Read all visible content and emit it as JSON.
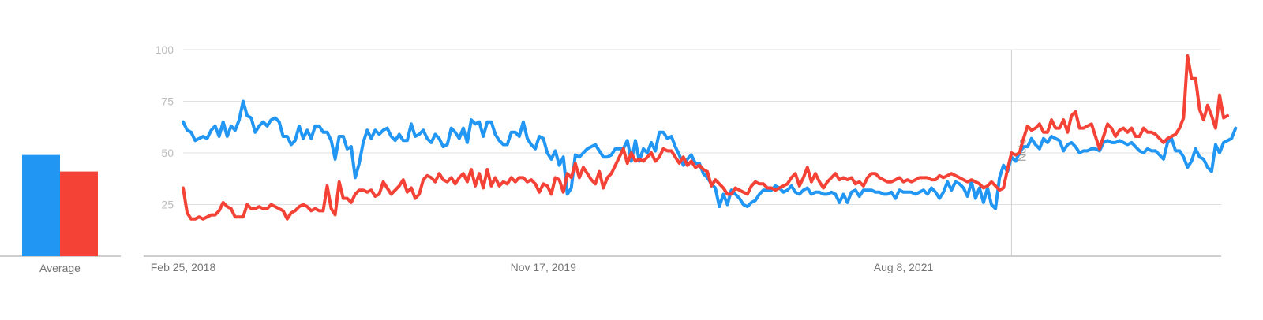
{
  "colors": {
    "series_a": "#2196f3",
    "series_b": "#f44336",
    "grid": "#e0e0e0",
    "axis": "#9e9e9e",
    "text": "#757575"
  },
  "average_panel": {
    "label": "Average",
    "values": [
      49,
      41
    ]
  },
  "chart_data": {
    "type": "line",
    "xlabel": "",
    "ylabel": "",
    "ylim": [
      0,
      100
    ],
    "yticks": [
      25,
      50,
      75,
      100
    ],
    "grid": true,
    "x_tick_labels": [
      "Feb 25, 2018",
      "Nov 17, 2019",
      "Aug 8, 2021"
    ],
    "note_marker": {
      "label": "Note",
      "x_index": 207
    },
    "x_range": {
      "start": "2018-02-25",
      "end": "2023-02-12",
      "step_days": 7,
      "points": 260
    },
    "series": [
      {
        "color": "#2196f3",
        "values": [
          65,
          61,
          60,
          56,
          57,
          58,
          57,
          61,
          63,
          58,
          65,
          58,
          63,
          61,
          66,
          75,
          68,
          67,
          60,
          63,
          65,
          63,
          66,
          67,
          65,
          58,
          58,
          54,
          56,
          63,
          57,
          61,
          57,
          63,
          63,
          60,
          60,
          56,
          47,
          58,
          58,
          52,
          53,
          38,
          45,
          55,
          61,
          57,
          61,
          59,
          61,
          62,
          58,
          56,
          59,
          56,
          56,
          64,
          58,
          59,
          61,
          57,
          55,
          59,
          57,
          53,
          54,
          62,
          60,
          57,
          62,
          55,
          66,
          64,
          65,
          58,
          65,
          65,
          59,
          56,
          54,
          54,
          60,
          60,
          58,
          65,
          57,
          54,
          52,
          58,
          57,
          50,
          47,
          51,
          44,
          48,
          30,
          33,
          49,
          48,
          50,
          52,
          53,
          54,
          51,
          48,
          48,
          49,
          52,
          52,
          52,
          56,
          46,
          56,
          46,
          52,
          50,
          55,
          51,
          60,
          60,
          57,
          58,
          53,
          49,
          44,
          47,
          49,
          45,
          45,
          40,
          38,
          35,
          33,
          24,
          30,
          25,
          32,
          30,
          28,
          25,
          24,
          26,
          27,
          30,
          32,
          32,
          32,
          34,
          33,
          31,
          32,
          34,
          31,
          30,
          32,
          33,
          30,
          31,
          31,
          30,
          30,
          31,
          30,
          26,
          30,
          26,
          31,
          32,
          29,
          32,
          32,
          32,
          31,
          31,
          30,
          30,
          31,
          28,
          32,
          31,
          31,
          31,
          30,
          31,
          32,
          30,
          33,
          31,
          28,
          31,
          36,
          32,
          36,
          35,
          33,
          29,
          36,
          28,
          33,
          26,
          33,
          25,
          23,
          38,
          44,
          41,
          48,
          46,
          50,
          53,
          53,
          57,
          54,
          52,
          57,
          55,
          58,
          57,
          56,
          51,
          54,
          55,
          53,
          50,
          51,
          51,
          52,
          52,
          51,
          55,
          56,
          55,
          55,
          56,
          55,
          54,
          55,
          53,
          51,
          50,
          52,
          51,
          51,
          49,
          47,
          55,
          57,
          51,
          51,
          48,
          43,
          46,
          52,
          48,
          47,
          43,
          41,
          54,
          50,
          55,
          56,
          57,
          62
        ]
      },
      {
        "color": "#f44336",
        "values": [
          33,
          21,
          18,
          18,
          19,
          18,
          19,
          20,
          20,
          22,
          26,
          24,
          23,
          19,
          19,
          19,
          25,
          23,
          23,
          24,
          23,
          23,
          25,
          24,
          23,
          22,
          18,
          21,
          22,
          24,
          25,
          24,
          22,
          23,
          22,
          22,
          34,
          23,
          20,
          36,
          28,
          28,
          26,
          30,
          32,
          32,
          31,
          32,
          29,
          30,
          36,
          33,
          30,
          32,
          34,
          37,
          31,
          33,
          28,
          30,
          37,
          39,
          38,
          36,
          40,
          37,
          36,
          38,
          35,
          38,
          40,
          36,
          42,
          34,
          40,
          33,
          42,
          34,
          38,
          34,
          36,
          35,
          38,
          36,
          38,
          38,
          36,
          37,
          35,
          31,
          35,
          34,
          30,
          38,
          37,
          31,
          40,
          38,
          45,
          38,
          43,
          40,
          37,
          35,
          41,
          33,
          38,
          40,
          44,
          48,
          52,
          45,
          50,
          46,
          47,
          46,
          48,
          50,
          46,
          48,
          52,
          51,
          51,
          48,
          45,
          48,
          44,
          46,
          43,
          44,
          42,
          41,
          34,
          37,
          35,
          33,
          30,
          30,
          33,
          32,
          31,
          30,
          34,
          36,
          35,
          35,
          33,
          33,
          32,
          33,
          34,
          35,
          38,
          40,
          34,
          38,
          43,
          36,
          40,
          36,
          33,
          36,
          38,
          40,
          37,
          38,
          37,
          38,
          35,
          36,
          34,
          38,
          40,
          40,
          38,
          37,
          36,
          36,
          37,
          38,
          36,
          37,
          36,
          37,
          38,
          38,
          38,
          37,
          37,
          39,
          38,
          39,
          40,
          39,
          38,
          37,
          36,
          37,
          36,
          35,
          33,
          34,
          36,
          34,
          32,
          33,
          42,
          50,
          49,
          50,
          57,
          63,
          61,
          62,
          64,
          60,
          60,
          66,
          62,
          62,
          66,
          60,
          68,
          70,
          62,
          62,
          63,
          64,
          58,
          52,
          58,
          64,
          62,
          58,
          61,
          62,
          60,
          62,
          58,
          58,
          62,
          60,
          60,
          59,
          57,
          55,
          57,
          58,
          59,
          62,
          67,
          97,
          86,
          86,
          71,
          66,
          73,
          68,
          62,
          78,
          67,
          68
        ]
      }
    ]
  }
}
